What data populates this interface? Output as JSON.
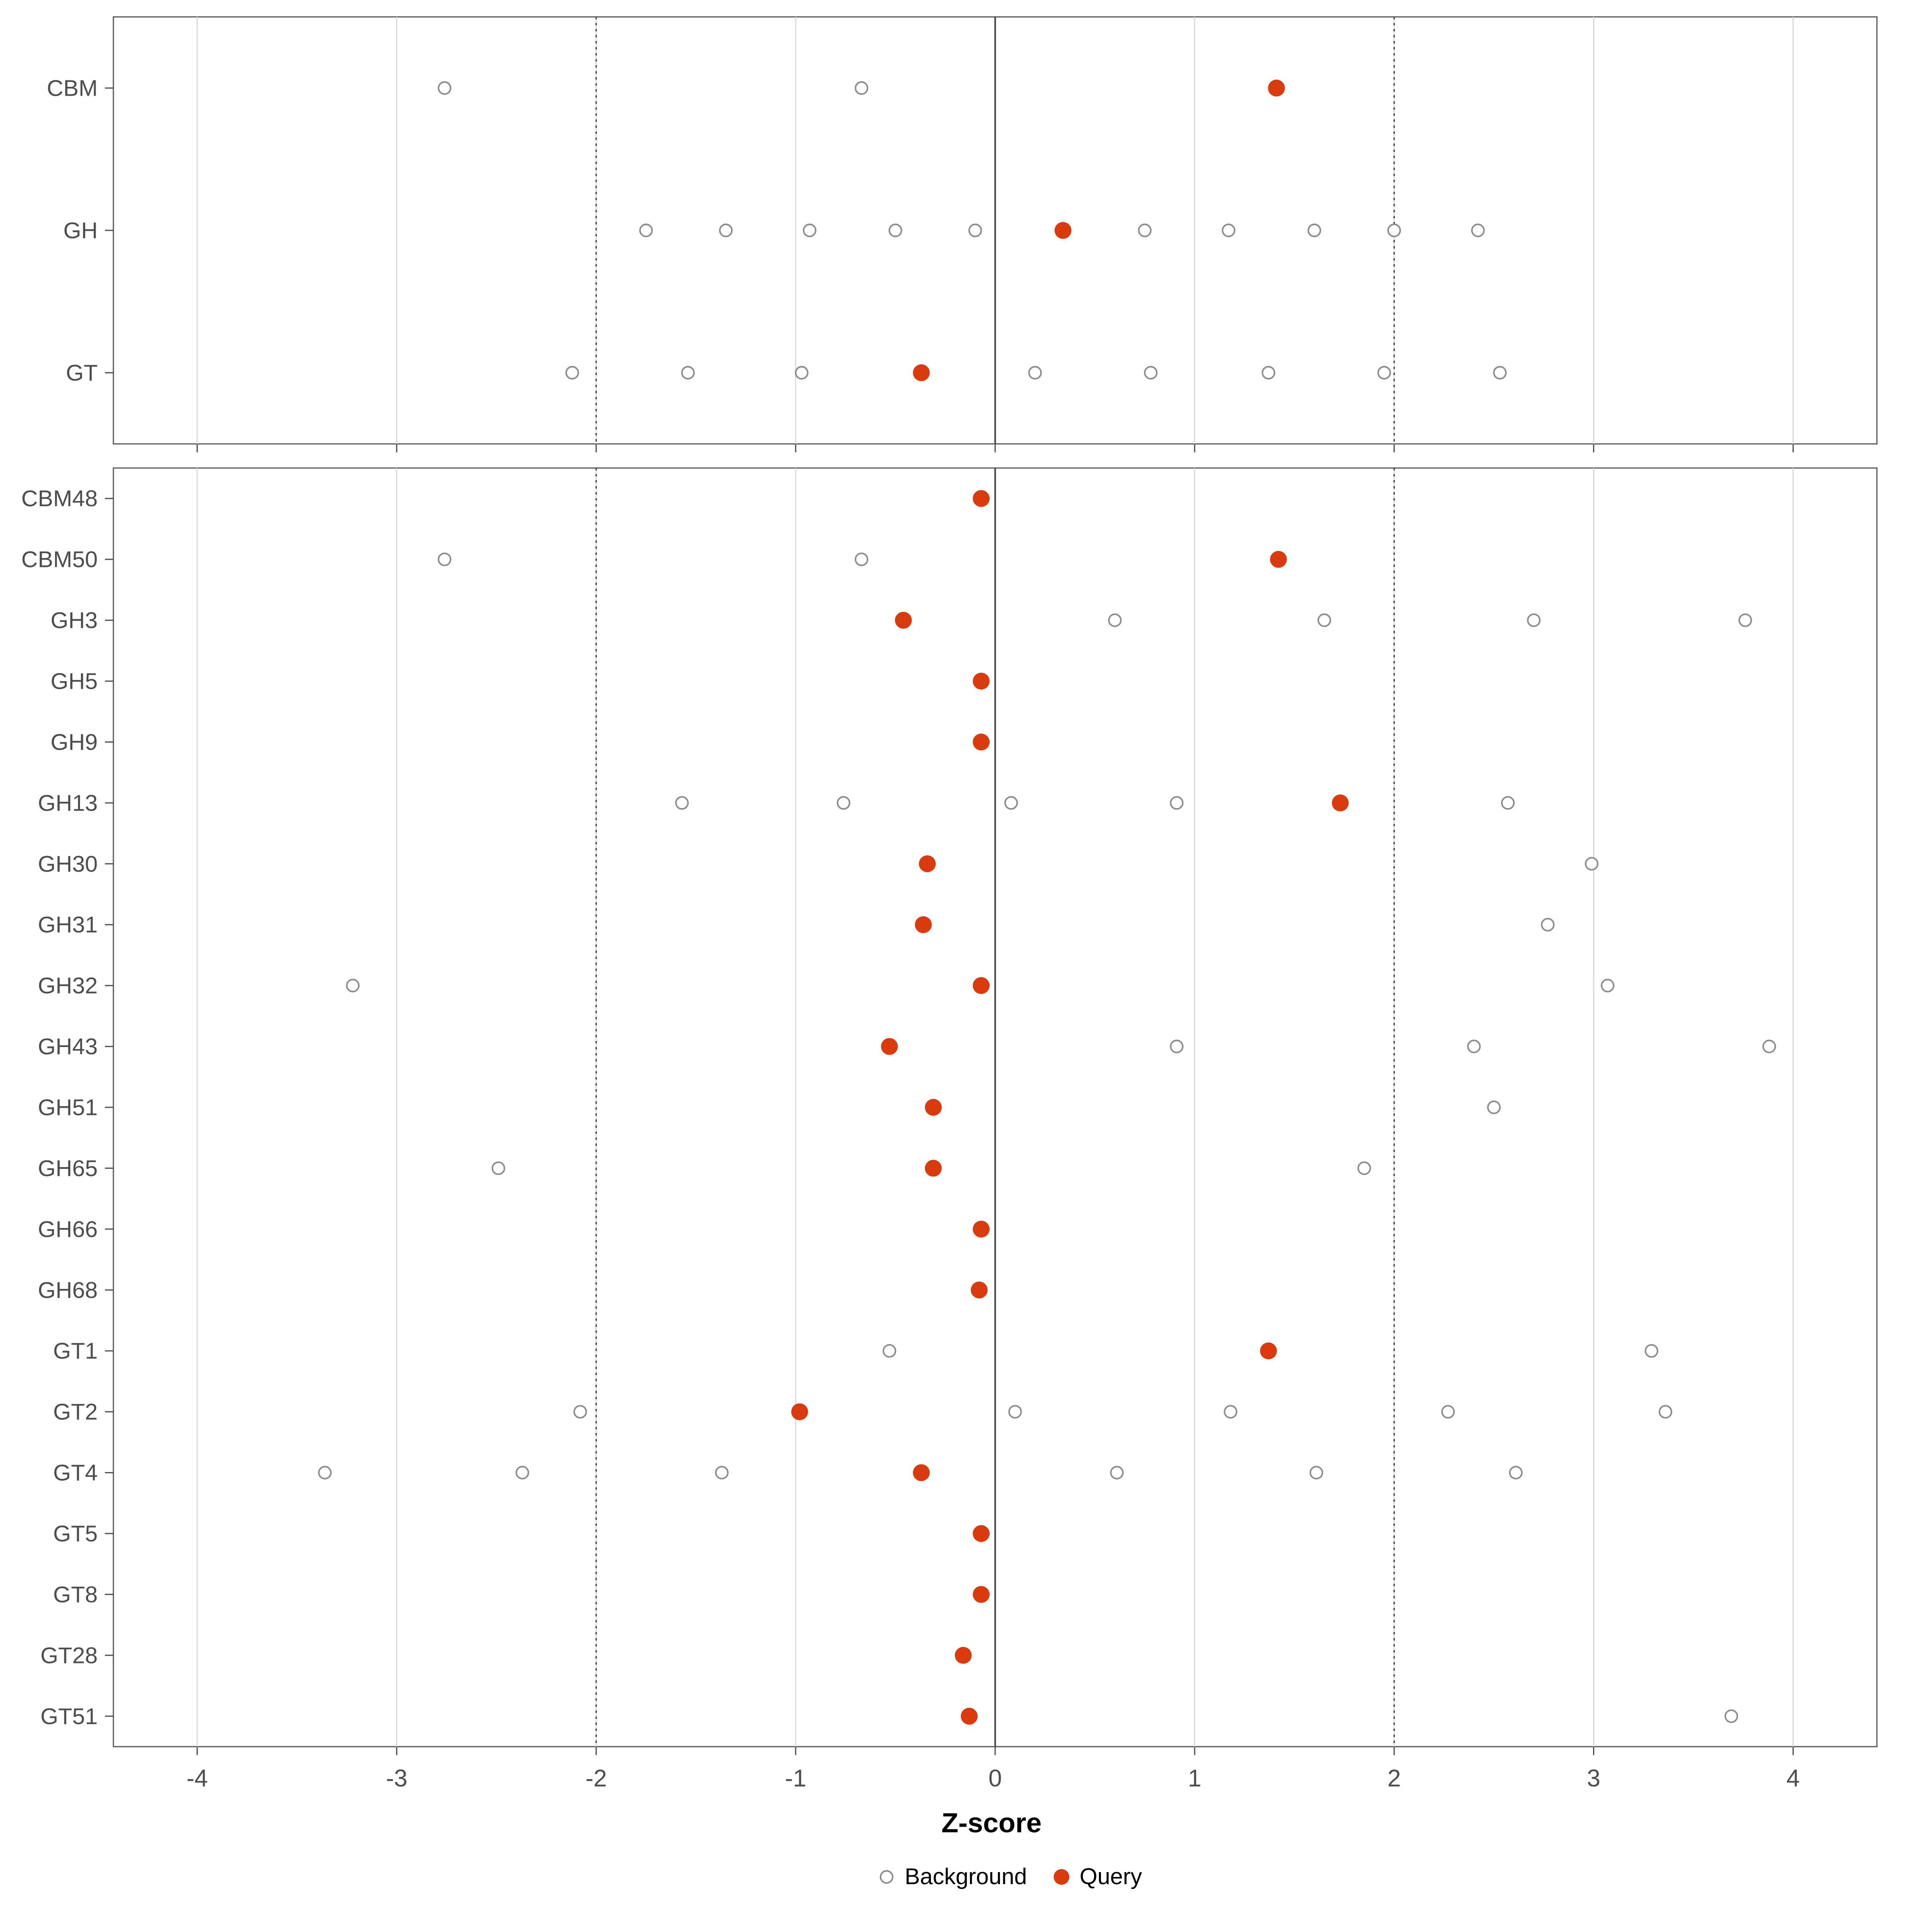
{
  "chart_data": {
    "type": "scatter",
    "title": "",
    "xlabel": "Z-score",
    "x_ticks": [
      -4,
      -3,
      -2,
      -1,
      0,
      1,
      2,
      3,
      4
    ],
    "x_domain": [
      -4.42,
      4.42
    ],
    "reference_lines": {
      "solid": [
        0
      ],
      "dotted": [
        -2,
        2
      ]
    },
    "legend": [
      {
        "label": "Background",
        "style": "open"
      },
      {
        "label": "Query",
        "style": "filled"
      }
    ],
    "colors": {
      "query": "#d93a0e",
      "background_stroke": "#8c8c8c",
      "background_fill": "#ffffff",
      "grid_minor": "#d9d9d9",
      "ref_dotted": "#333333",
      "ref_solid": "#4d4d4d",
      "panel_border": "#595959",
      "axis_text": "#4d4d4d"
    },
    "panels": [
      {
        "name": "families-summary",
        "rows": [
          {
            "label": "CBM",
            "background": [
              -2.76,
              -0.67
            ],
            "query": 1.41
          },
          {
            "label": "GH",
            "background": [
              -1.75,
              -1.35,
              -0.93,
              -0.5,
              -0.1,
              0.75,
              1.17,
              1.6,
              2.0,
              2.42
            ],
            "query": 0.34
          },
          {
            "label": "GT",
            "background": [
              -2.12,
              -1.54,
              -0.97,
              0.2,
              0.78,
              1.37,
              1.95,
              2.53
            ],
            "query": -0.37
          }
        ]
      },
      {
        "name": "families-detail",
        "rows": [
          {
            "label": "CBM48",
            "background": [],
            "query": -0.07
          },
          {
            "label": "CBM50",
            "background": [
              -2.76,
              -0.67
            ],
            "query": 1.42
          },
          {
            "label": "GH3",
            "background": [
              0.6,
              1.65,
              2.7,
              3.76
            ],
            "query": -0.46
          },
          {
            "label": "GH5",
            "background": [],
            "query": -0.07
          },
          {
            "label": "GH9",
            "background": [],
            "query": -0.07
          },
          {
            "label": "GH13",
            "background": [
              -1.57,
              -0.76,
              0.08,
              0.91,
              2.57
            ],
            "query": 1.73
          },
          {
            "label": "GH30",
            "background": [
              2.99
            ],
            "query": -0.34
          },
          {
            "label": "GH31",
            "background": [
              2.77
            ],
            "query": -0.36
          },
          {
            "label": "GH32",
            "background": [
              -3.22,
              3.07
            ],
            "query": -0.07
          },
          {
            "label": "GH43",
            "background": [
              0.91,
              2.4,
              3.88
            ],
            "query": -0.53
          },
          {
            "label": "GH51",
            "background": [
              2.5
            ],
            "query": -0.31
          },
          {
            "label": "GH65",
            "background": [
              -2.49,
              1.85
            ],
            "query": -0.31
          },
          {
            "label": "GH66",
            "background": [],
            "query": -0.07
          },
          {
            "label": "GH68",
            "background": [],
            "query": -0.08
          },
          {
            "label": "GT1",
            "background": [
              -0.53,
              3.29
            ],
            "query": 1.37
          },
          {
            "label": "GT2",
            "background": [
              -2.08,
              0.1,
              1.18,
              2.27,
              3.36
            ],
            "query": -0.98
          },
          {
            "label": "GT4",
            "background": [
              -3.36,
              -2.37,
              -1.37,
              0.61,
              1.61,
              2.61
            ],
            "query": -0.37
          },
          {
            "label": "GT5",
            "background": [],
            "query": -0.07
          },
          {
            "label": "GT8",
            "background": [],
            "query": -0.07
          },
          {
            "label": "GT28",
            "background": [],
            "query": -0.16
          },
          {
            "label": "GT51",
            "background": [
              3.69
            ],
            "query": -0.13
          }
        ]
      }
    ]
  }
}
